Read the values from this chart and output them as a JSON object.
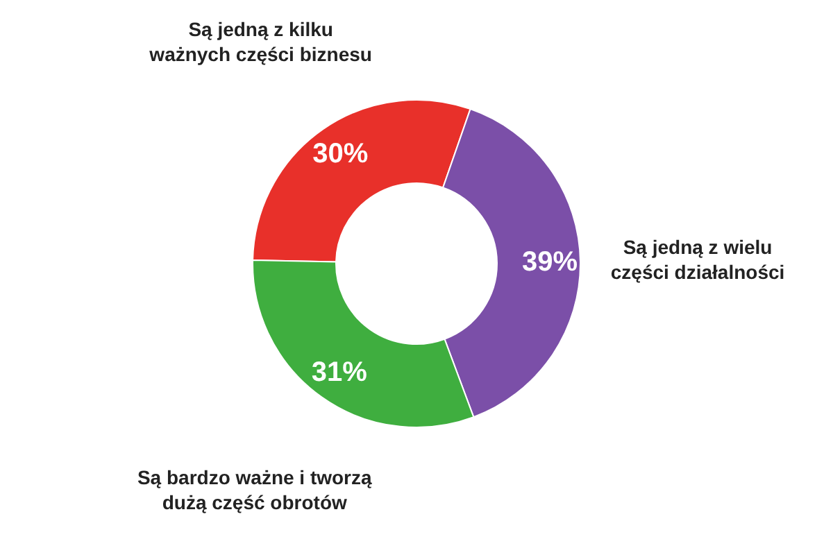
{
  "chart_data": {
    "type": "donut",
    "categories": [
      "Są jedną z kilku ważnych części biznesu",
      "Są jedną z wielu części działalności",
      "Są bardzo ważne i tworzą dużą część obrotów"
    ],
    "values": [
      30,
      39,
      31
    ],
    "colors": [
      "#e8302a",
      "#7b4fa8",
      "#3fae3f"
    ],
    "value_labels": [
      "30%",
      "39%",
      "31%"
    ],
    "legend": false
  }
}
